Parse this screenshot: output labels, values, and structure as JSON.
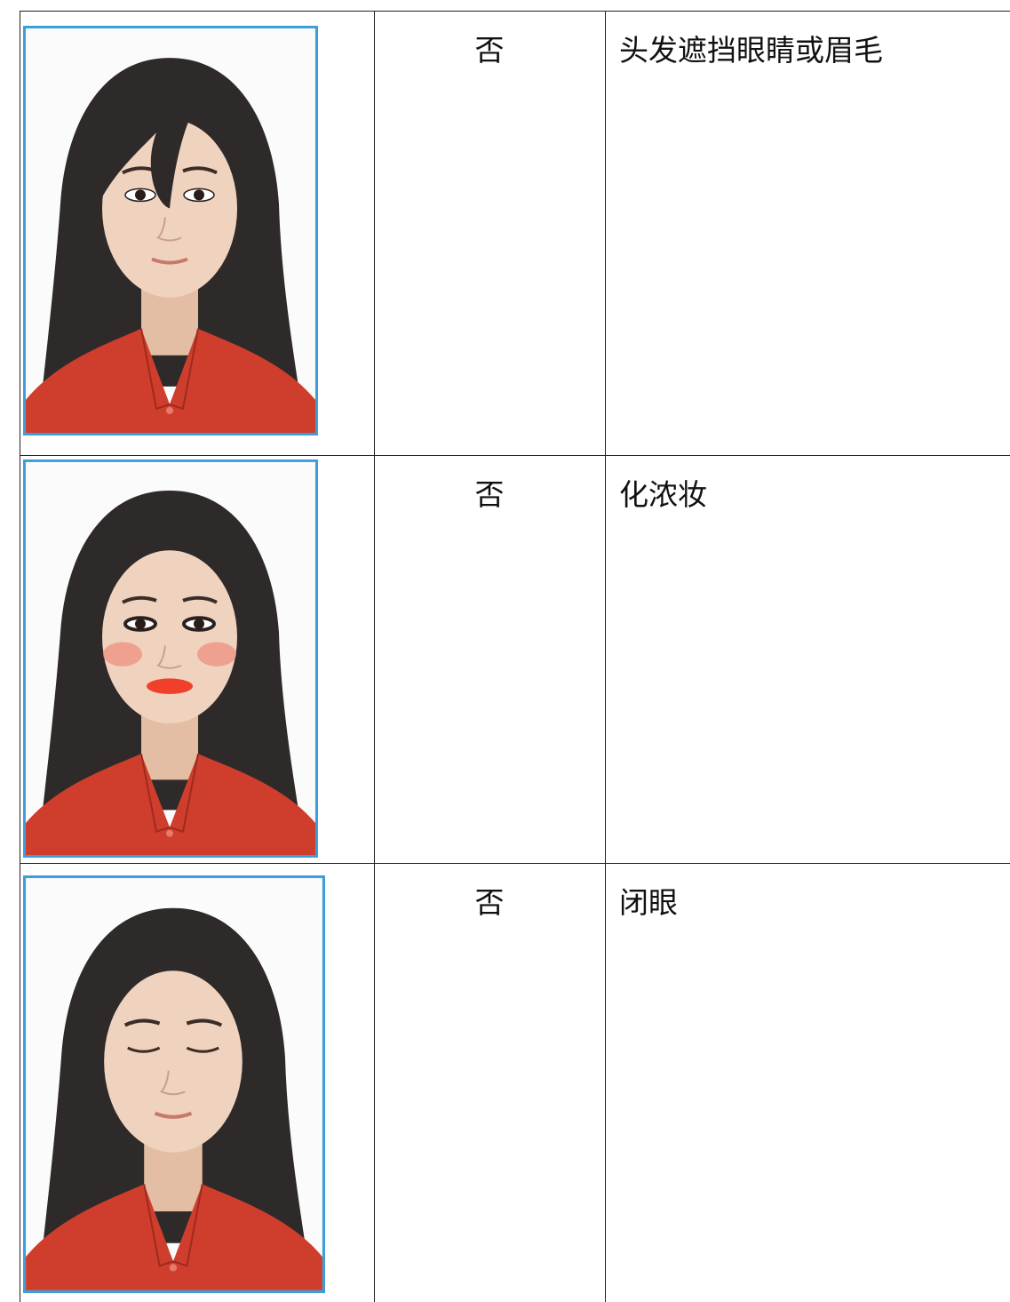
{
  "table": {
    "rows": [
      [
        "否",
        "头发遮挡眼睛或眉毛"
      ],
      [
        "否",
        "化浓妆"
      ],
      [
        "否",
        "闭眼"
      ]
    ]
  }
}
